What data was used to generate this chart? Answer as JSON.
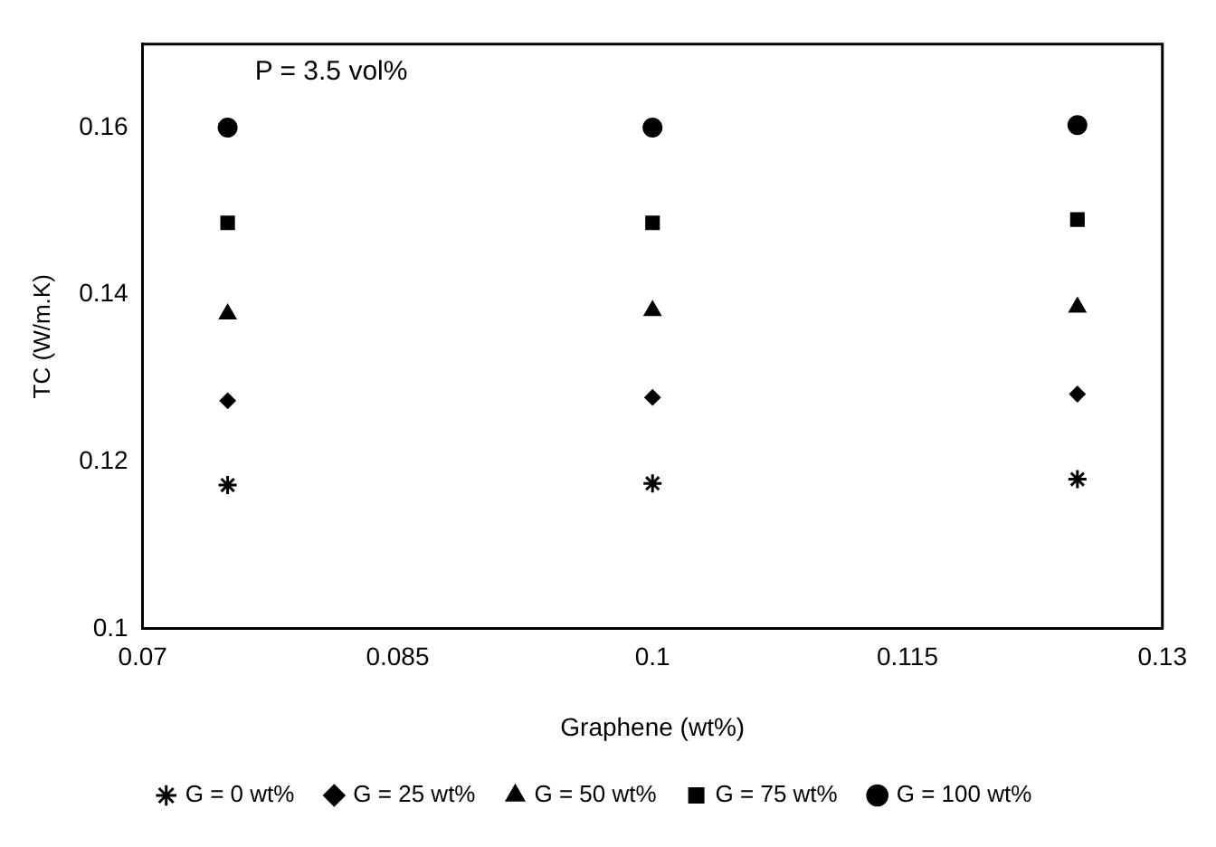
{
  "chart_data": {
    "type": "scatter",
    "xlabel": "Graphene (wt%)",
    "ylabel": "TC (W/m.K)",
    "annotations": [
      "P = 3.5 vol%"
    ],
    "x": [
      0.075,
      0.1,
      0.125
    ],
    "series": [
      {
        "name": "G = 0 wt%",
        "color": "#000000",
        "marker": "cross",
        "values": [
          0.1172,
          0.1174,
          0.1179
        ]
      },
      {
        "name": "G = 25 wt%",
        "color": "#000000",
        "marker": "diamond",
        "values": [
          0.1273,
          0.1277,
          0.1281
        ]
      },
      {
        "name": "G = 50 wt%",
        "color": "#000000",
        "marker": "triangle",
        "values": [
          0.1377,
          0.1381,
          0.1385
        ]
      },
      {
        "name": "G = 75 wt%",
        "color": "#000000",
        "marker": "square",
        "values": [
          0.1486,
          0.1486,
          0.149
        ]
      },
      {
        "name": "G = 100 wt%",
        "color": "#000000",
        "marker": "circle",
        "values": [
          0.16,
          0.16,
          0.1603
        ]
      }
    ],
    "xlim": [
      0.07,
      0.13
    ],
    "xticks": [
      0.07,
      0.085,
      0.1,
      0.115,
      0.13
    ],
    "ylim": [
      0.1,
      0.17
    ],
    "yticks": [
      0.1,
      0.12,
      0.14,
      0.16
    ],
    "grid": false,
    "legend": "bottom"
  }
}
